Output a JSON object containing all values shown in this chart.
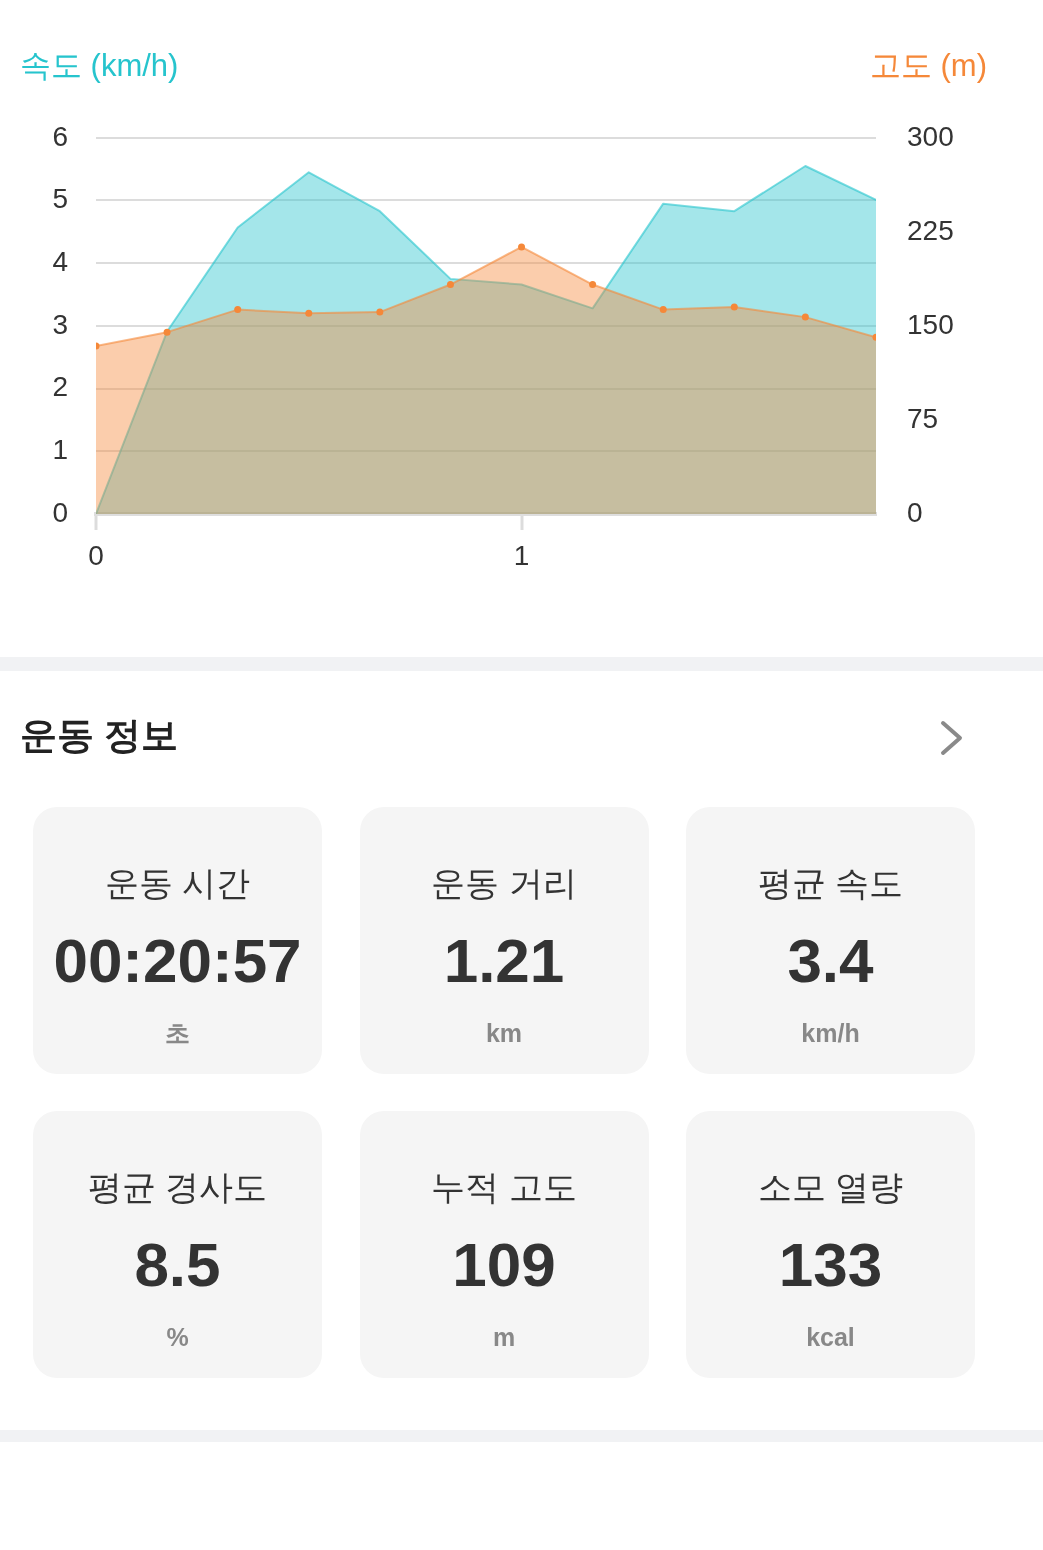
{
  "chart_data": [
    {
      "type": "area",
      "ylabel": "속도 (km/h)",
      "y2label": "고도 (m)",
      "x": [
        0,
        0.167,
        0.333,
        0.5,
        0.667,
        0.833,
        1,
        1.167,
        1.333,
        1.5,
        1.667,
        1.833
      ],
      "xlim": [
        0,
        1.833
      ],
      "xticks": [
        0,
        1
      ],
      "ylim": [
        0,
        6
      ],
      "yticks": [
        0,
        1,
        2,
        3,
        4,
        5,
        6
      ],
      "y2lim": [
        0,
        300
      ],
      "y2ticks": [
        0,
        75,
        150,
        225,
        300
      ],
      "grid": "y",
      "series": [
        {
          "color": "#26c4cd",
          "values": [
            0,
            2.91,
            4.57,
            5.45,
            4.83,
            3.75,
            3.66,
            3.28,
            4.95,
            4.83,
            5.55,
            5.01
          ]
        },
        {
          "color": "#f58839",
          "axis": "y2",
          "marker": "circle",
          "values": [
            134,
            145,
            163,
            160,
            161,
            183,
            213,
            183,
            163,
            165,
            157,
            141
          ]
        }
      ]
    },
    {
      "type": "other",
      "title": "운동 정보",
      "categories": [
        "운동 시간",
        "운동 거리",
        "평균 속도",
        "평균 경사도",
        "누적 고도",
        "소모 열량"
      ],
      "value_labels": [
        "00:20:57",
        "1.21",
        "3.4",
        "8.5",
        "109",
        "133"
      ],
      "annotations": [
        "초",
        "km",
        "km/h",
        "%",
        "m",
        "kcal"
      ]
    }
  ]
}
